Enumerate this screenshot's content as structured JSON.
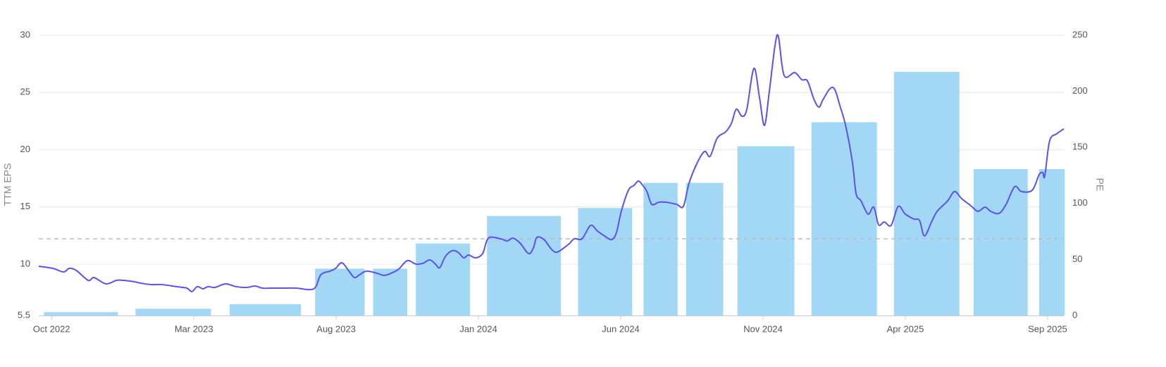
{
  "chart_data": {
    "type": "combo",
    "ylabel": "TTM EPS",
    "y2label": "PE",
    "xlim": [
      -0.45,
      35.57
    ],
    "xticks": [
      {
        "value": 0,
        "label": "Oct 2022"
      },
      {
        "value": 5,
        "label": "Mar 2023"
      },
      {
        "value": 10,
        "label": "Aug 2023"
      },
      {
        "value": 15,
        "label": "Jan 2024"
      },
      {
        "value": 20,
        "label": "Jun 2024"
      },
      {
        "value": 25,
        "label": "Nov 2024"
      },
      {
        "value": 30,
        "label": "Apr 2025"
      },
      {
        "value": 35,
        "label": "Sep 2025"
      }
    ],
    "ylim": [
      5.5,
      30
    ],
    "yticks": [
      5.5,
      10,
      15,
      20,
      25,
      30
    ],
    "y2lim": [
      0,
      250
    ],
    "y2ticks": [
      0,
      50,
      100,
      150,
      200,
      250
    ],
    "grid": true,
    "bars": {
      "color": "#a2d8f6",
      "x0": [
        -0.27,
        2.95,
        6.26,
        9.26,
        11.3,
        12.8,
        15.3,
        18.5,
        20.8,
        22.3,
        24.1,
        26.7,
        29.6,
        32.4,
        34.7
      ],
      "x1": [
        2.33,
        5.6,
        8.76,
        11.0,
        12.5,
        14.7,
        17.9,
        20.4,
        22.0,
        23.6,
        26.1,
        29.0,
        31.9,
        34.3,
        35.6
      ],
      "values": [
        5.8,
        6.1,
        6.5,
        9.6,
        9.6,
        11.8,
        14.2,
        14.9,
        17.1,
        17.1,
        20.3,
        22.4,
        26.8,
        18.3,
        18.3
      ]
    },
    "line": {
      "color": "#5c50f0",
      "axis": "y2",
      "x": [
        -0.45,
        0.05,
        0.42,
        0.62,
        0.87,
        1.29,
        1.49,
        1.91,
        2.28,
        2.52,
        2.9,
        3.14,
        3.51,
        3.89,
        4.38,
        4.75,
        4.93,
        5.12,
        5.32,
        5.5,
        5.74,
        6.11,
        6.49,
        6.86,
        7.15,
        7.4,
        7.72,
        8.09,
        8.59,
        9.21,
        9.46,
        9.78,
        9.98,
        10.2,
        10.45,
        10.64,
        10.82,
        11.06,
        11.44,
        11.68,
        11.93,
        12.2,
        12.5,
        12.8,
        13.04,
        13.29,
        13.49,
        13.64,
        13.84,
        14.08,
        14.28,
        14.48,
        14.65,
        14.9,
        15.15,
        15.35,
        15.77,
        16.01,
        16.21,
        16.46,
        16.76,
        16.93,
        17.05,
        17.3,
        17.57,
        17.75,
        18.0,
        18.19,
        18.37,
        18.64,
        18.94,
        19.18,
        19.43,
        19.68,
        19.85,
        20.02,
        20.27,
        20.47,
        20.62,
        20.77,
        20.92,
        21.09,
        21.34,
        21.58,
        21.96,
        22.2,
        22.4,
        22.7,
        22.95,
        23.14,
        23.39,
        23.69,
        23.89,
        24.06,
        24.26,
        24.43,
        24.68,
        24.88,
        25.05,
        25.22,
        25.42,
        25.54,
        25.74,
        26.11,
        26.36,
        26.56,
        26.78,
        26.96,
        27.1,
        27.35,
        27.52,
        27.7,
        27.9,
        28.14,
        28.27,
        28.44,
        28.69,
        28.89,
        29.06,
        29.26,
        29.5,
        29.75,
        30.0,
        30.3,
        30.5,
        30.67,
        30.92,
        31.12,
        31.49,
        31.73,
        31.98,
        32.3,
        32.55,
        32.8,
        33.0,
        33.29,
        33.54,
        33.84,
        34.08,
        34.46,
        34.7,
        34.83,
        34.9,
        35.07,
        35.32,
        35.57
      ],
      "values": [
        44.0,
        42.1,
        38.9,
        42.1,
        40.2,
        31.4,
        33.9,
        28.3,
        31.4,
        31.4,
        30.2,
        28.9,
        27.6,
        27.6,
        25.8,
        24.5,
        21.4,
        25.8,
        23.9,
        25.8,
        25.1,
        28.3,
        25.8,
        25.1,
        26.4,
        24.5,
        24.5,
        24.5,
        24.5,
        23.9,
        36.4,
        39.6,
        42.1,
        47.1,
        39.6,
        33.9,
        36.4,
        39.6,
        37.7,
        35.8,
        37.7,
        41.5,
        49.0,
        45.9,
        46.5,
        49.6,
        45.9,
        42.7,
        52.8,
        57.8,
        56.5,
        51.5,
        54.0,
        51.5,
        55.3,
        69.1,
        68.5,
        66.6,
        69.1,
        64.7,
        55.3,
        60.3,
        69.7,
        67.8,
        59.0,
        56.5,
        60.3,
        64.1,
        68.5,
        68.5,
        80.4,
        75.4,
        71.0,
        67.8,
        74.1,
        93.0,
        111.8,
        116.2,
        120.0,
        116.2,
        110.6,
        99.2,
        101.1,
        101.1,
        99.2,
        97.4,
        118.1,
        136.9,
        146.4,
        142.0,
        158.3,
        163.9,
        171.5,
        184.0,
        177.8,
        184.0,
        220.5,
        193.5,
        169.6,
        199.7,
        240.6,
        248.7,
        214.2,
        216.7,
        210.4,
        209.2,
        193.5,
        185.9,
        192.2,
        202.3,
        201.6,
        187.2,
        169.6,
        136.9,
        108.7,
        102.4,
        90.5,
        96.7,
        81.0,
        83.5,
        80.4,
        97.4,
        90.5,
        86.1,
        84.8,
        71.0,
        83.5,
        93.0,
        102.4,
        110.6,
        104.3,
        98.0,
        93.0,
        96.7,
        93.0,
        91.1,
        99.2,
        114.9,
        110.6,
        111.8,
        125.6,
        127.5,
        124.4,
        155.8,
        162.1,
        166.5
      ]
    },
    "reference_lines": [
      {
        "value": 68.5,
        "axis": "y2",
        "color": "#bbbbbb"
      }
    ]
  }
}
